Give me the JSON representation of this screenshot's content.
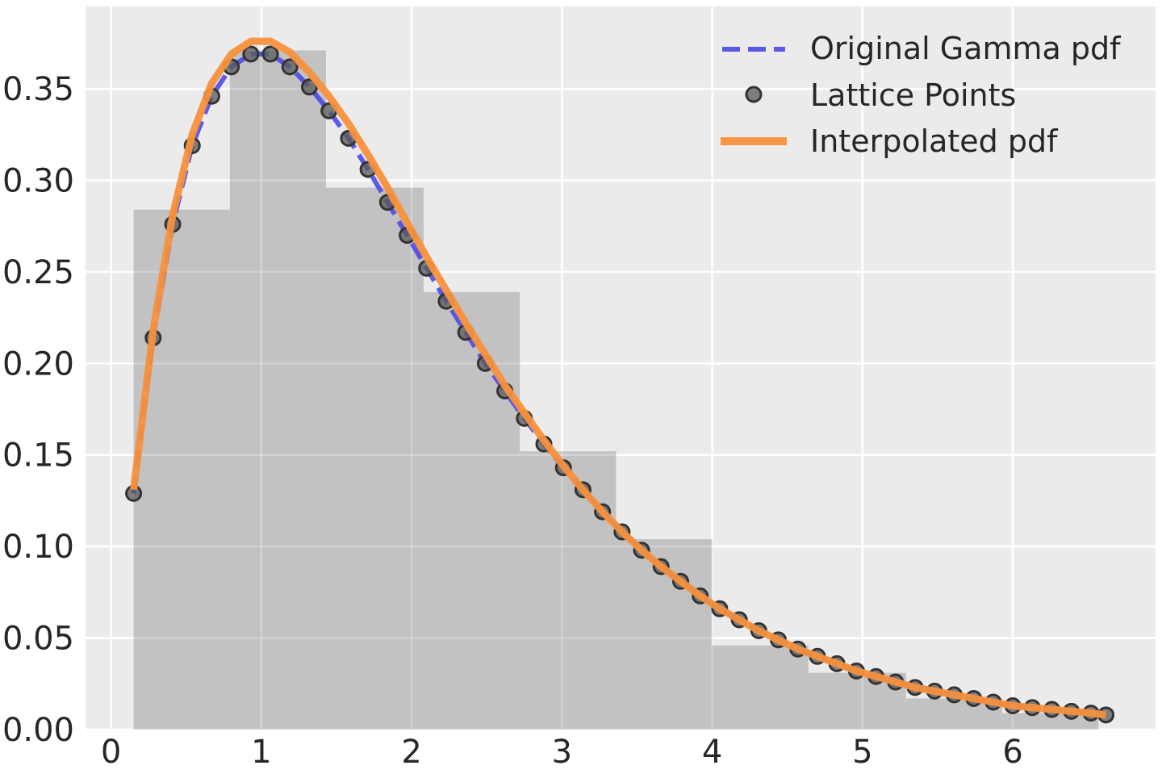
{
  "chart_data": {
    "type": "line",
    "title": "",
    "xlabel": "",
    "ylabel": "",
    "xlim": [
      -0.17,
      6.95
    ],
    "ylim": [
      0,
      0.395
    ],
    "grid": true,
    "legend_position": "top-right",
    "x_ticks": [
      "0",
      "1",
      "2",
      "3",
      "4",
      "5",
      "6"
    ],
    "y_ticks": [
      "0.00",
      "0.05",
      "0.10",
      "0.15",
      "0.20",
      "0.25",
      "0.30",
      "0.35"
    ],
    "colors": {
      "background": "#ebebeb",
      "grid": "#ffffff",
      "histogram": "#c2c2c2",
      "gamma_line": "#4b4be6",
      "lattice_points": "#5a5a5a",
      "interpolated_line": "#f7913d"
    },
    "histogram": {
      "bin_edges": [
        0.15,
        0.79,
        1.43,
        2.08,
        2.72,
        3.36,
        4.0,
        4.64,
        5.29,
        5.93,
        6.57
      ],
      "values": [
        0.284,
        0.371,
        0.296,
        0.239,
        0.152,
        0.104,
        0.046,
        0.031,
        0.017,
        0.009
      ]
    },
    "series": [
      {
        "name": "Original Gamma pdf",
        "style": "dashed",
        "x": [
          0.15,
          0.28,
          0.41,
          0.54,
          0.67,
          0.8,
          0.93,
          1.06,
          1.19,
          1.32,
          1.45,
          1.58,
          1.71,
          1.84,
          1.97,
          2.1,
          2.23,
          2.36,
          2.49,
          2.62,
          2.75,
          2.88,
          3.01,
          3.14,
          3.27,
          3.4,
          3.53,
          3.66,
          3.79,
          3.92,
          4.05,
          4.18,
          4.31,
          4.44,
          4.57,
          4.7,
          4.83,
          4.96,
          5.09,
          5.22,
          5.35,
          5.48,
          5.61,
          5.74,
          5.87,
          6.0,
          6.13,
          6.26,
          6.39,
          6.52,
          6.62
        ],
        "values": [
          0.129,
          0.214,
          0.276,
          0.319,
          0.346,
          0.362,
          0.369,
          0.369,
          0.362,
          0.351,
          0.338,
          0.323,
          0.306,
          0.288,
          0.27,
          0.252,
          0.234,
          0.217,
          0.2,
          0.185,
          0.17,
          0.156,
          0.143,
          0.131,
          0.119,
          0.108,
          0.098,
          0.089,
          0.081,
          0.073,
          0.066,
          0.06,
          0.054,
          0.049,
          0.044,
          0.04,
          0.036,
          0.032,
          0.029,
          0.026,
          0.023,
          0.021,
          0.019,
          0.017,
          0.015,
          0.013,
          0.012,
          0.011,
          0.01,
          0.009,
          0.008
        ]
      },
      {
        "name": "Lattice Points",
        "style": "markers",
        "x": [
          0.15,
          0.28,
          0.41,
          0.54,
          0.67,
          0.8,
          0.93,
          1.06,
          1.19,
          1.32,
          1.45,
          1.58,
          1.71,
          1.84,
          1.97,
          2.1,
          2.23,
          2.36,
          2.49,
          2.62,
          2.75,
          2.88,
          3.01,
          3.14,
          3.27,
          3.4,
          3.53,
          3.66,
          3.79,
          3.92,
          4.05,
          4.18,
          4.31,
          4.44,
          4.57,
          4.7,
          4.83,
          4.96,
          5.09,
          5.22,
          5.35,
          5.48,
          5.61,
          5.74,
          5.87,
          6.0,
          6.13,
          6.26,
          6.39,
          6.52,
          6.62
        ],
        "values": [
          0.129,
          0.214,
          0.276,
          0.319,
          0.346,
          0.362,
          0.369,
          0.369,
          0.362,
          0.351,
          0.338,
          0.323,
          0.306,
          0.288,
          0.27,
          0.252,
          0.234,
          0.217,
          0.2,
          0.185,
          0.17,
          0.156,
          0.143,
          0.131,
          0.119,
          0.108,
          0.098,
          0.089,
          0.081,
          0.073,
          0.066,
          0.06,
          0.054,
          0.049,
          0.044,
          0.04,
          0.036,
          0.032,
          0.029,
          0.026,
          0.023,
          0.021,
          0.019,
          0.017,
          0.015,
          0.013,
          0.012,
          0.011,
          0.01,
          0.009,
          0.008
        ]
      },
      {
        "name": "Interpolated pdf",
        "style": "solid",
        "x": [
          0.15,
          0.28,
          0.41,
          0.54,
          0.67,
          0.8,
          0.93,
          1.06,
          1.19,
          1.32,
          1.45,
          1.58,
          1.71,
          1.84,
          1.97,
          2.1,
          2.23,
          2.36,
          2.49,
          2.62,
          2.75,
          2.88,
          3.01,
          3.14,
          3.27,
          3.4,
          3.53,
          3.66,
          3.79,
          3.92,
          4.05,
          4.18,
          4.31,
          4.44,
          4.57,
          4.7,
          4.83,
          4.96,
          5.09,
          5.22,
          5.35,
          5.48,
          5.61,
          5.74,
          5.87,
          6.0,
          6.13,
          6.26,
          6.39,
          6.52,
          6.62
        ],
        "values": [
          0.131,
          0.218,
          0.281,
          0.325,
          0.353,
          0.369,
          0.376,
          0.376,
          0.37,
          0.359,
          0.346,
          0.331,
          0.314,
          0.296,
          0.277,
          0.258,
          0.24,
          0.222,
          0.205,
          0.188,
          0.173,
          0.158,
          0.144,
          0.131,
          0.119,
          0.108,
          0.098,
          0.089,
          0.081,
          0.073,
          0.066,
          0.06,
          0.054,
          0.049,
          0.044,
          0.04,
          0.036,
          0.032,
          0.029,
          0.026,
          0.023,
          0.021,
          0.019,
          0.017,
          0.015,
          0.013,
          0.012,
          0.011,
          0.01,
          0.009,
          0.008
        ]
      }
    ]
  }
}
